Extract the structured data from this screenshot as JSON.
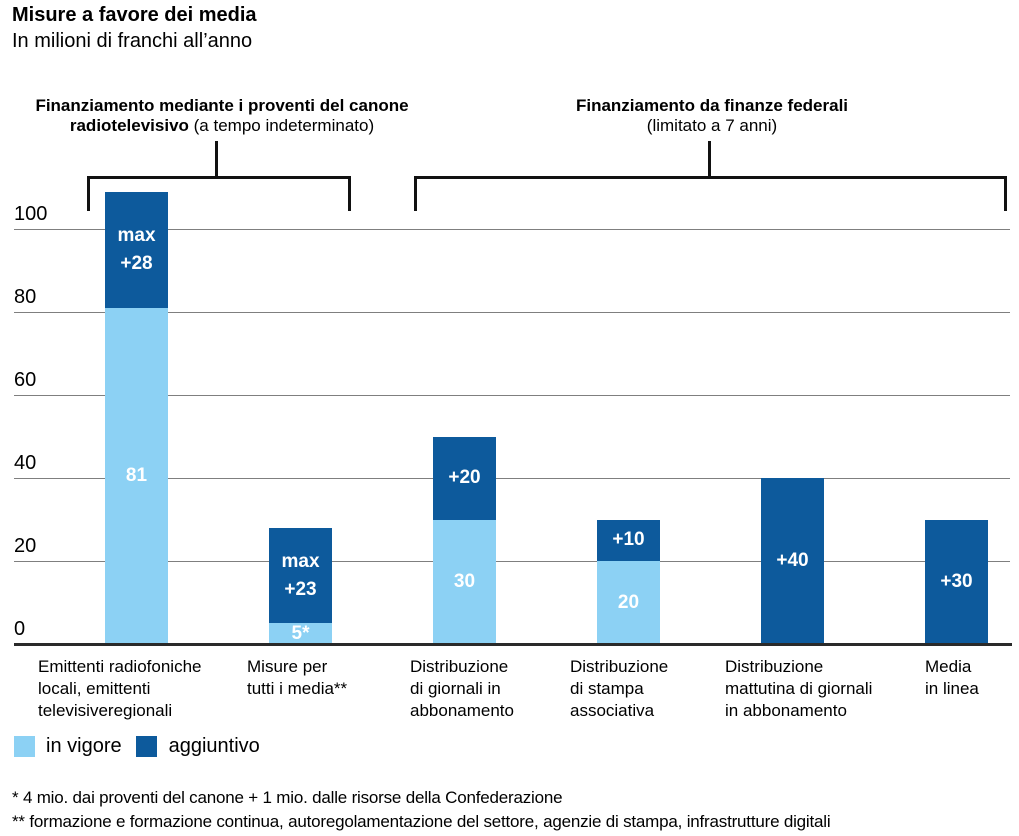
{
  "title": "Misure a favore dei media",
  "subtitle": "In milioni di franchi all’anno",
  "group_headers": [
    {
      "line1": "Finanziamento mediante i proventi del canone",
      "line2_bold": "radiotelevisivo",
      "line2_rest": " (a tempo indeterminato)"
    },
    {
      "line1": "Finanziamento da finanze federali",
      "line2_bold": "",
      "line2_rest": "(limitato a 7 anni)"
    }
  ],
  "legend": {
    "items": [
      {
        "label": "in vigore",
        "color": "#8cd1f4"
      },
      {
        "label": "aggiuntivo",
        "color": "#0d5a9c"
      }
    ]
  },
  "footnotes": [
    "* 4 mio. dai proventi del canone + 1 mio. dalle risorse della Confederazione",
    "** formazione e formazione continua, autoregolamentazione del settore, agenzie di stampa, infrastrutture digitali"
  ],
  "chart_data": {
    "type": "bar",
    "stacked": true,
    "title": "Misure a favore dei media",
    "subtitle": "In milioni di franchi all’anno",
    "unit": "milioni di franchi all’anno",
    "grid": true,
    "legend_position": "bottom-left",
    "yticks": [
      0,
      20,
      40,
      60,
      80,
      100
    ],
    "ylim": [
      0,
      110
    ],
    "categories": [
      "Emittenti radiofoniche locali, emittenti televisiveregionali",
      "Misure per tutti i media**",
      "Distribuzione di giornali in abbonamento",
      "Distribuzione di stampa associativa",
      "Distribuzione mattutina di giornali in abbonamento",
      "Media in linea"
    ],
    "category_lines": [
      [
        "Emittenti radiofoniche",
        "locali, emittenti",
        "televisiveregionali"
      ],
      [
        "Misure per",
        "tutti i media**"
      ],
      [
        "Distribuzione",
        "di giornali in",
        "abbonamento"
      ],
      [
        "Distribuzione",
        "di stampa",
        "associativa"
      ],
      [
        "Distribuzione",
        "mattutina di giornali",
        "in abbonamento"
      ],
      [
        "Media",
        "in linea"
      ]
    ],
    "category_groups": [
      "Finanziamento mediante i proventi del canone radiotelevisivo (a tempo indeterminato)",
      "Finanziamento mediante i proventi del canone radiotelevisivo (a tempo indeterminato)",
      "Finanziamento da finanze federali (limitato a 7 anni)",
      "Finanziamento da finanze federali (limitato a 7 anni)",
      "Finanziamento da finanze federali (limitato a 7 anni)",
      "Finanziamento da finanze federali (limitato a 7 anni)"
    ],
    "series": [
      {
        "name": "in vigore",
        "color": "#8cd1f4",
        "values": [
          81,
          5,
          30,
          20,
          0,
          0
        ],
        "bar_labels": [
          "81",
          "5*",
          "30",
          "20",
          "",
          ""
        ]
      },
      {
        "name": "aggiuntivo",
        "color": "#0d5a9c",
        "values": [
          28,
          23,
          20,
          10,
          40,
          30
        ],
        "bar_labels": [
          [
            "max",
            "+28"
          ],
          [
            "max",
            "+23"
          ],
          [
            "+20"
          ],
          [
            "+10"
          ],
          [
            "+40"
          ],
          [
            "+30"
          ]
        ]
      }
    ]
  }
}
